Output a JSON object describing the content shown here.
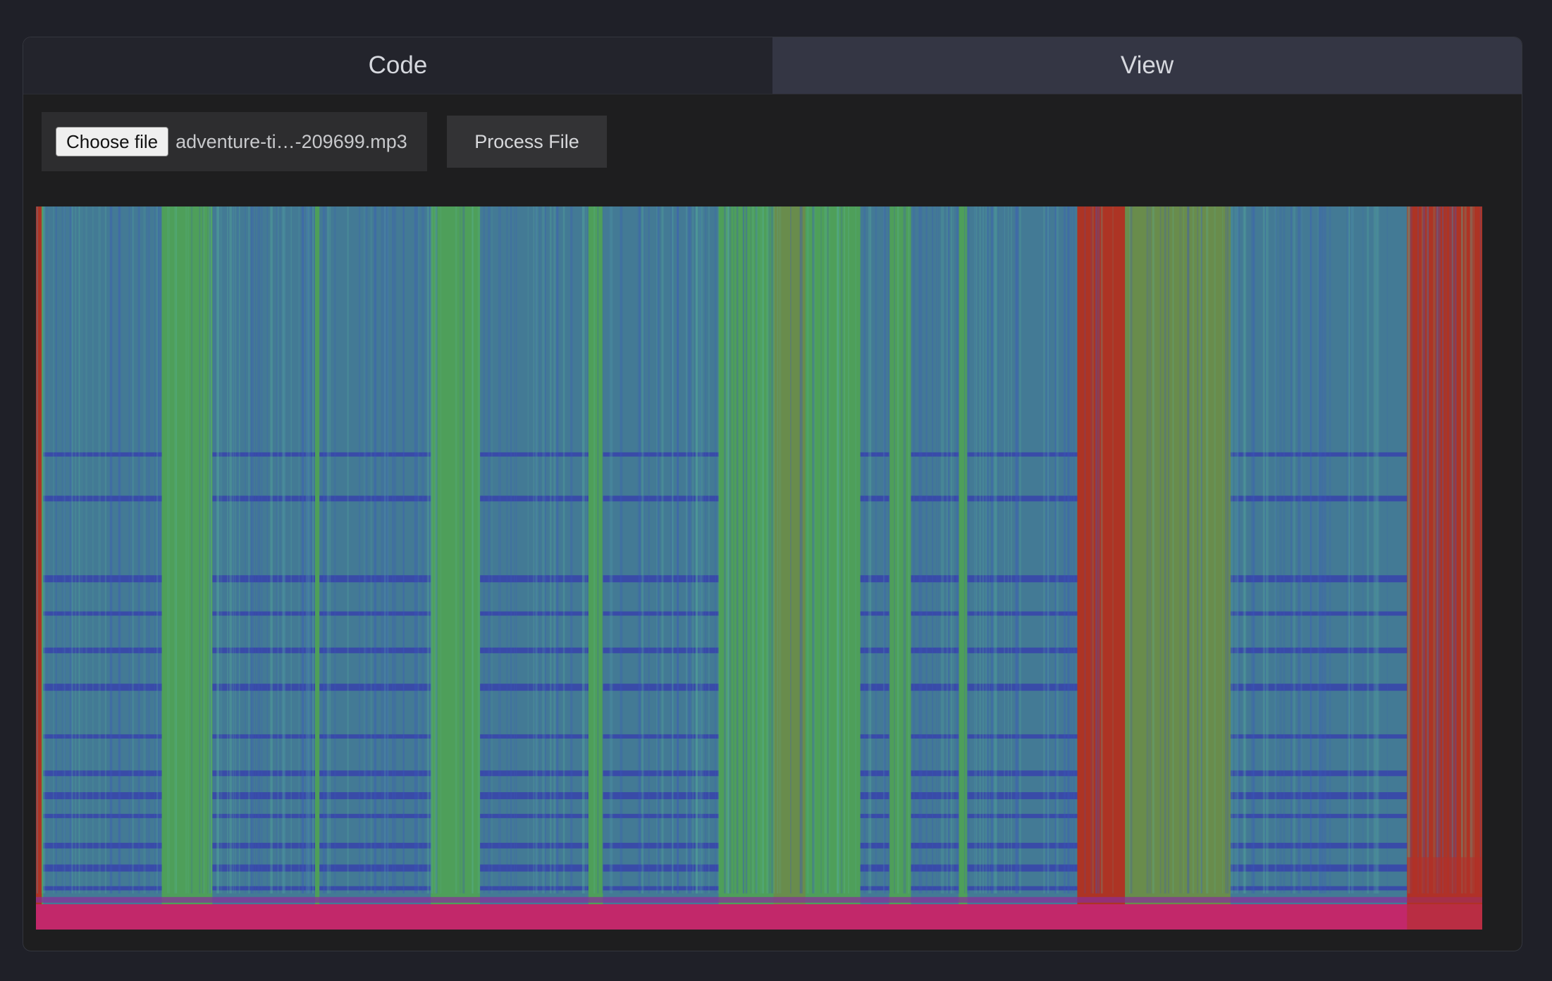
{
  "tabs": {
    "code_label": "Code",
    "view_label": "View",
    "active": "view"
  },
  "file_input": {
    "button_label": "Choose file",
    "file_name": "adventure-ti…-209699.mp3"
  },
  "process_button": {
    "label": "Process File"
  },
  "spectrogram": {
    "colormap": [
      "#2a1f9e",
      "#3b63c4",
      "#4aa78a",
      "#5fae4a",
      "#a8402a",
      "#b22a22",
      "#c2286a"
    ],
    "description_colors": {
      "low_energy": "#3a5bc7",
      "mid_energy": "#4e9f5a",
      "high_energy": "#ad3424",
      "bottom_band": "#c2286a"
    }
  }
}
